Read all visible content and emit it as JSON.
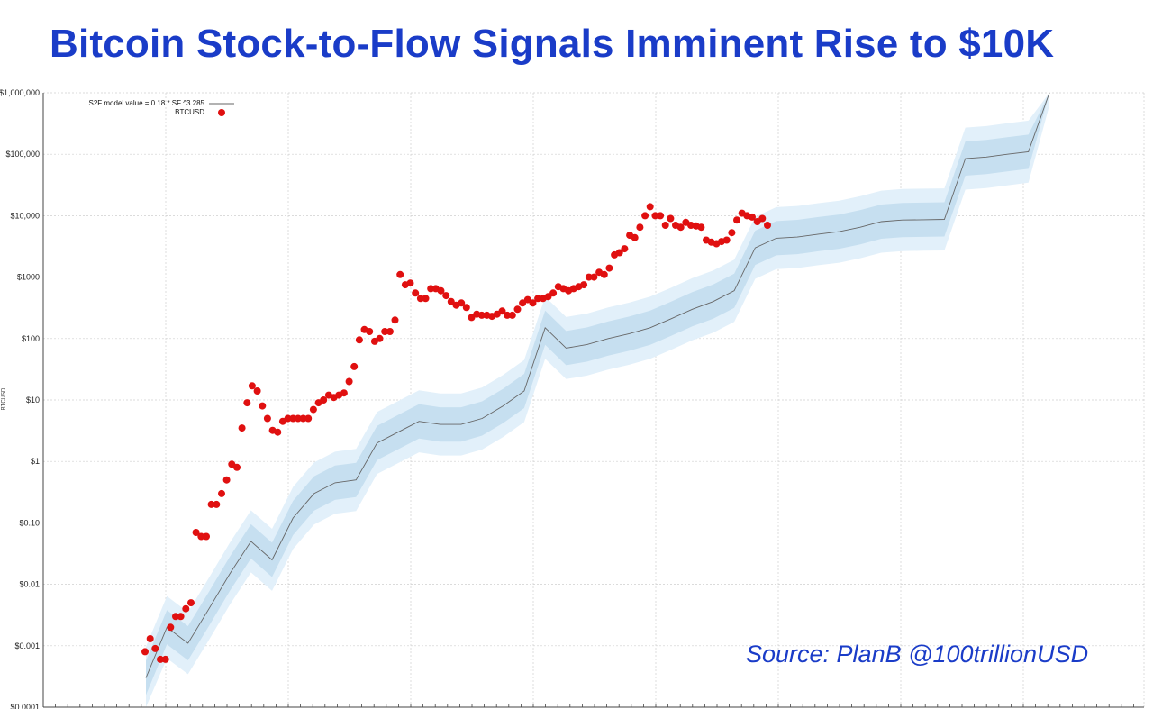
{
  "title": "Bitcoin Stock-to-Flow Signals Imminent Rise to $10K",
  "source": "Source: PlanB @100trillionUSD",
  "colors": {
    "title": "#1a3cc8",
    "points": "#e01010",
    "band_outer": "#e2f0fa",
    "band_inner": "#c6dff0",
    "model_line": "#666666"
  },
  "chart_data": {
    "type": "scatter",
    "ylabel": "BTCUSD",
    "y_scale": "log",
    "ylim": [
      0.0001,
      1000000
    ],
    "y_ticks": [
      {
        "value": 1000000,
        "label": "$1,000,000"
      },
      {
        "value": 100000,
        "label": "$100,000"
      },
      {
        "value": 10000,
        "label": "$10,000"
      },
      {
        "value": 1000,
        "label": "$1000"
      },
      {
        "value": 100,
        "label": "$100"
      },
      {
        "value": 10,
        "label": "$10"
      },
      {
        "value": 1,
        "label": "$1"
      },
      {
        "value": 0.1,
        "label": "$0.10"
      },
      {
        "value": 0.01,
        "label": "$0.01"
      },
      {
        "value": 0.001,
        "label": "$0.001"
      },
      {
        "value": 0.0001,
        "label": "$0.0001"
      }
    ],
    "grid": true,
    "legend_position": "top-left",
    "series": [
      {
        "name": "S2F model value = 0.18 * SF ^3.285",
        "kind": "line",
        "values": [
          0.0003,
          0.002,
          0.0011,
          0.004,
          0.015,
          0.05,
          0.025,
          0.12,
          0.3,
          0.45,
          0.5,
          2,
          3,
          4.5,
          4,
          4,
          5,
          8,
          14,
          150,
          70,
          80,
          100,
          120,
          150,
          210,
          300,
          400,
          600,
          3000,
          4300,
          4500,
          5000,
          5500,
          6500,
          8000,
          8500,
          8600,
          8700,
          85000,
          90000,
          100000,
          110000,
          2000000
        ]
      },
      {
        "name": "BTCUSD",
        "kind": "scatter",
        "values": [
          0.0008,
          0.0013,
          0.0009,
          0.0006,
          0.0006,
          0.002,
          0.003,
          0.003,
          0.004,
          0.005,
          0.07,
          0.06,
          0.06,
          0.2,
          0.2,
          0.3,
          0.5,
          0.9,
          0.8,
          3.5,
          9,
          17,
          14,
          8,
          5,
          3.2,
          3,
          4.5,
          5,
          5,
          5,
          5,
          5,
          7,
          9,
          10,
          12,
          11,
          12,
          13,
          20,
          35,
          95,
          140,
          130,
          90,
          100,
          130,
          130,
          200,
          1100,
          750,
          800,
          550,
          450,
          450,
          650,
          650,
          600,
          500,
          400,
          350,
          380,
          320,
          220,
          250,
          240,
          240,
          230,
          250,
          280,
          240,
          240,
          300,
          380,
          430,
          380,
          450,
          450,
          480,
          550,
          700,
          650,
          600,
          650,
          700,
          750,
          1000,
          1000,
          1200,
          1100,
          1400,
          2300,
          2500,
          2900,
          4800,
          4400,
          6500,
          10000,
          14000,
          10000,
          10000,
          7000,
          9000,
          7000,
          6500,
          7800,
          7000,
          6800,
          6500,
          4000,
          3700,
          3500,
          3800,
          4000,
          5300,
          8500,
          11000,
          10000,
          9500,
          8000,
          9000,
          7000
        ]
      }
    ]
  }
}
